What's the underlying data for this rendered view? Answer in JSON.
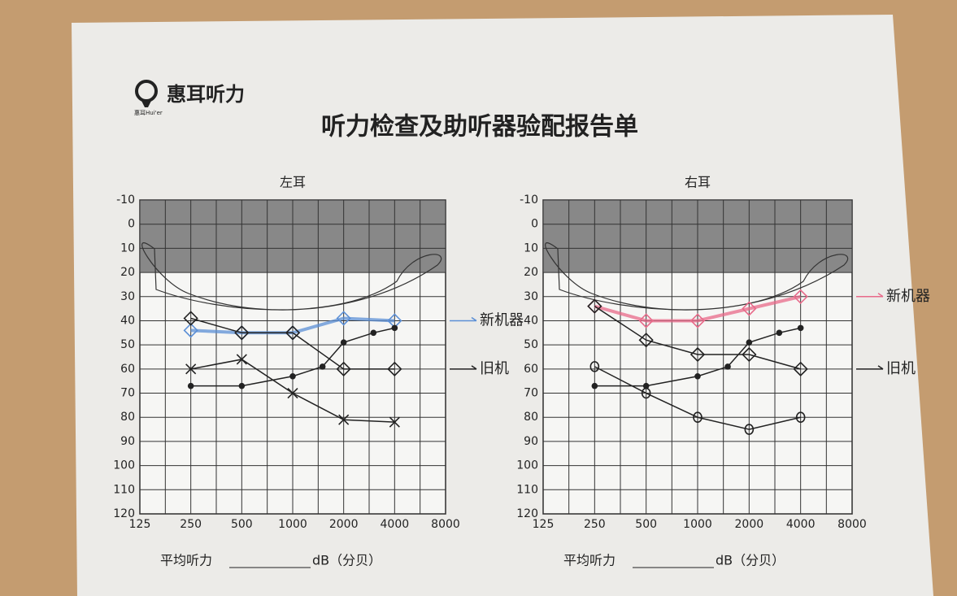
{
  "header": {
    "brand": "惠耳听力",
    "brand_sub": "惠耳Hui'er",
    "title": "听力检查及助听器验配报告单"
  },
  "chart_data": [
    {
      "type": "line",
      "title": "左耳",
      "x_scale": "log",
      "xlim": [
        125,
        8000
      ],
      "xticks": [
        125,
        250,
        500,
        1000,
        2000,
        4000,
        8000
      ],
      "ylim": [
        -10,
        120
      ],
      "y_inverted": true,
      "yticks": [
        -10,
        0,
        10,
        20,
        30,
        40,
        50,
        60,
        70,
        80,
        90,
        100,
        110,
        120
      ],
      "grid": true,
      "shaded_ylim": [
        -10,
        20
      ],
      "series": [
        {
          "name": "新机器",
          "color": "#5b8fd6",
          "marker": "diamond",
          "x": [
            250,
            500,
            1000,
            2000,
            4000
          ],
          "values": [
            44,
            45,
            45,
            39,
            40
          ]
        },
        {
          "name": "旧机",
          "color": "#222222",
          "marker": "diamond",
          "x": [
            250,
            500,
            1000,
            2000,
            4000
          ],
          "values": [
            39,
            45,
            45,
            60,
            60
          ]
        },
        {
          "color": "#222222",
          "marker": "x",
          "x": [
            250,
            500,
            1000,
            2000,
            4000
          ],
          "values": [
            60,
            56,
            70,
            81,
            82
          ]
        },
        {
          "color": "#222222",
          "marker": "dot",
          "x": [
            250,
            500,
            1000,
            1500,
            2000,
            3000,
            4000
          ],
          "values": [
            67,
            67,
            63,
            59,
            49,
            45,
            43
          ]
        }
      ],
      "footer": {
        "label": "平均听力",
        "unit": "dB（分贝）"
      }
    },
    {
      "type": "line",
      "title": "右耳",
      "x_scale": "log",
      "xlim": [
        125,
        8000
      ],
      "xticks": [
        125,
        250,
        500,
        1000,
        2000,
        4000,
        8000
      ],
      "ylim": [
        -10,
        120
      ],
      "y_inverted": true,
      "yticks": [
        -10,
        0,
        10,
        20,
        30,
        40,
        50,
        60,
        70,
        80,
        90,
        100,
        110,
        120
      ],
      "grid": true,
      "shaded_ylim": [
        -10,
        20
      ],
      "series": [
        {
          "name": "新机器",
          "color": "#e86a8a",
          "marker": "diamond",
          "x": [
            250,
            500,
            1000,
            2000,
            4000
          ],
          "values": [
            34,
            40,
            40,
            35,
            30
          ]
        },
        {
          "name": "旧机",
          "color": "#222222",
          "marker": "diamond",
          "x": [
            250,
            500,
            1000,
            2000,
            4000
          ],
          "values": [
            34,
            48,
            54,
            54,
            60
          ]
        },
        {
          "color": "#222222",
          "marker": "o",
          "x": [
            250,
            500,
            1000,
            2000,
            4000
          ],
          "values": [
            59,
            70,
            80,
            85,
            80
          ]
        },
        {
          "color": "#222222",
          "marker": "dot",
          "x": [
            250,
            500,
            1000,
            1500,
            2000,
            3000,
            4000
          ],
          "values": [
            67,
            67,
            63,
            59,
            49,
            45,
            43
          ]
        }
      ],
      "footer": {
        "label": "平均听力",
        "unit": "dB（分贝）"
      }
    }
  ]
}
